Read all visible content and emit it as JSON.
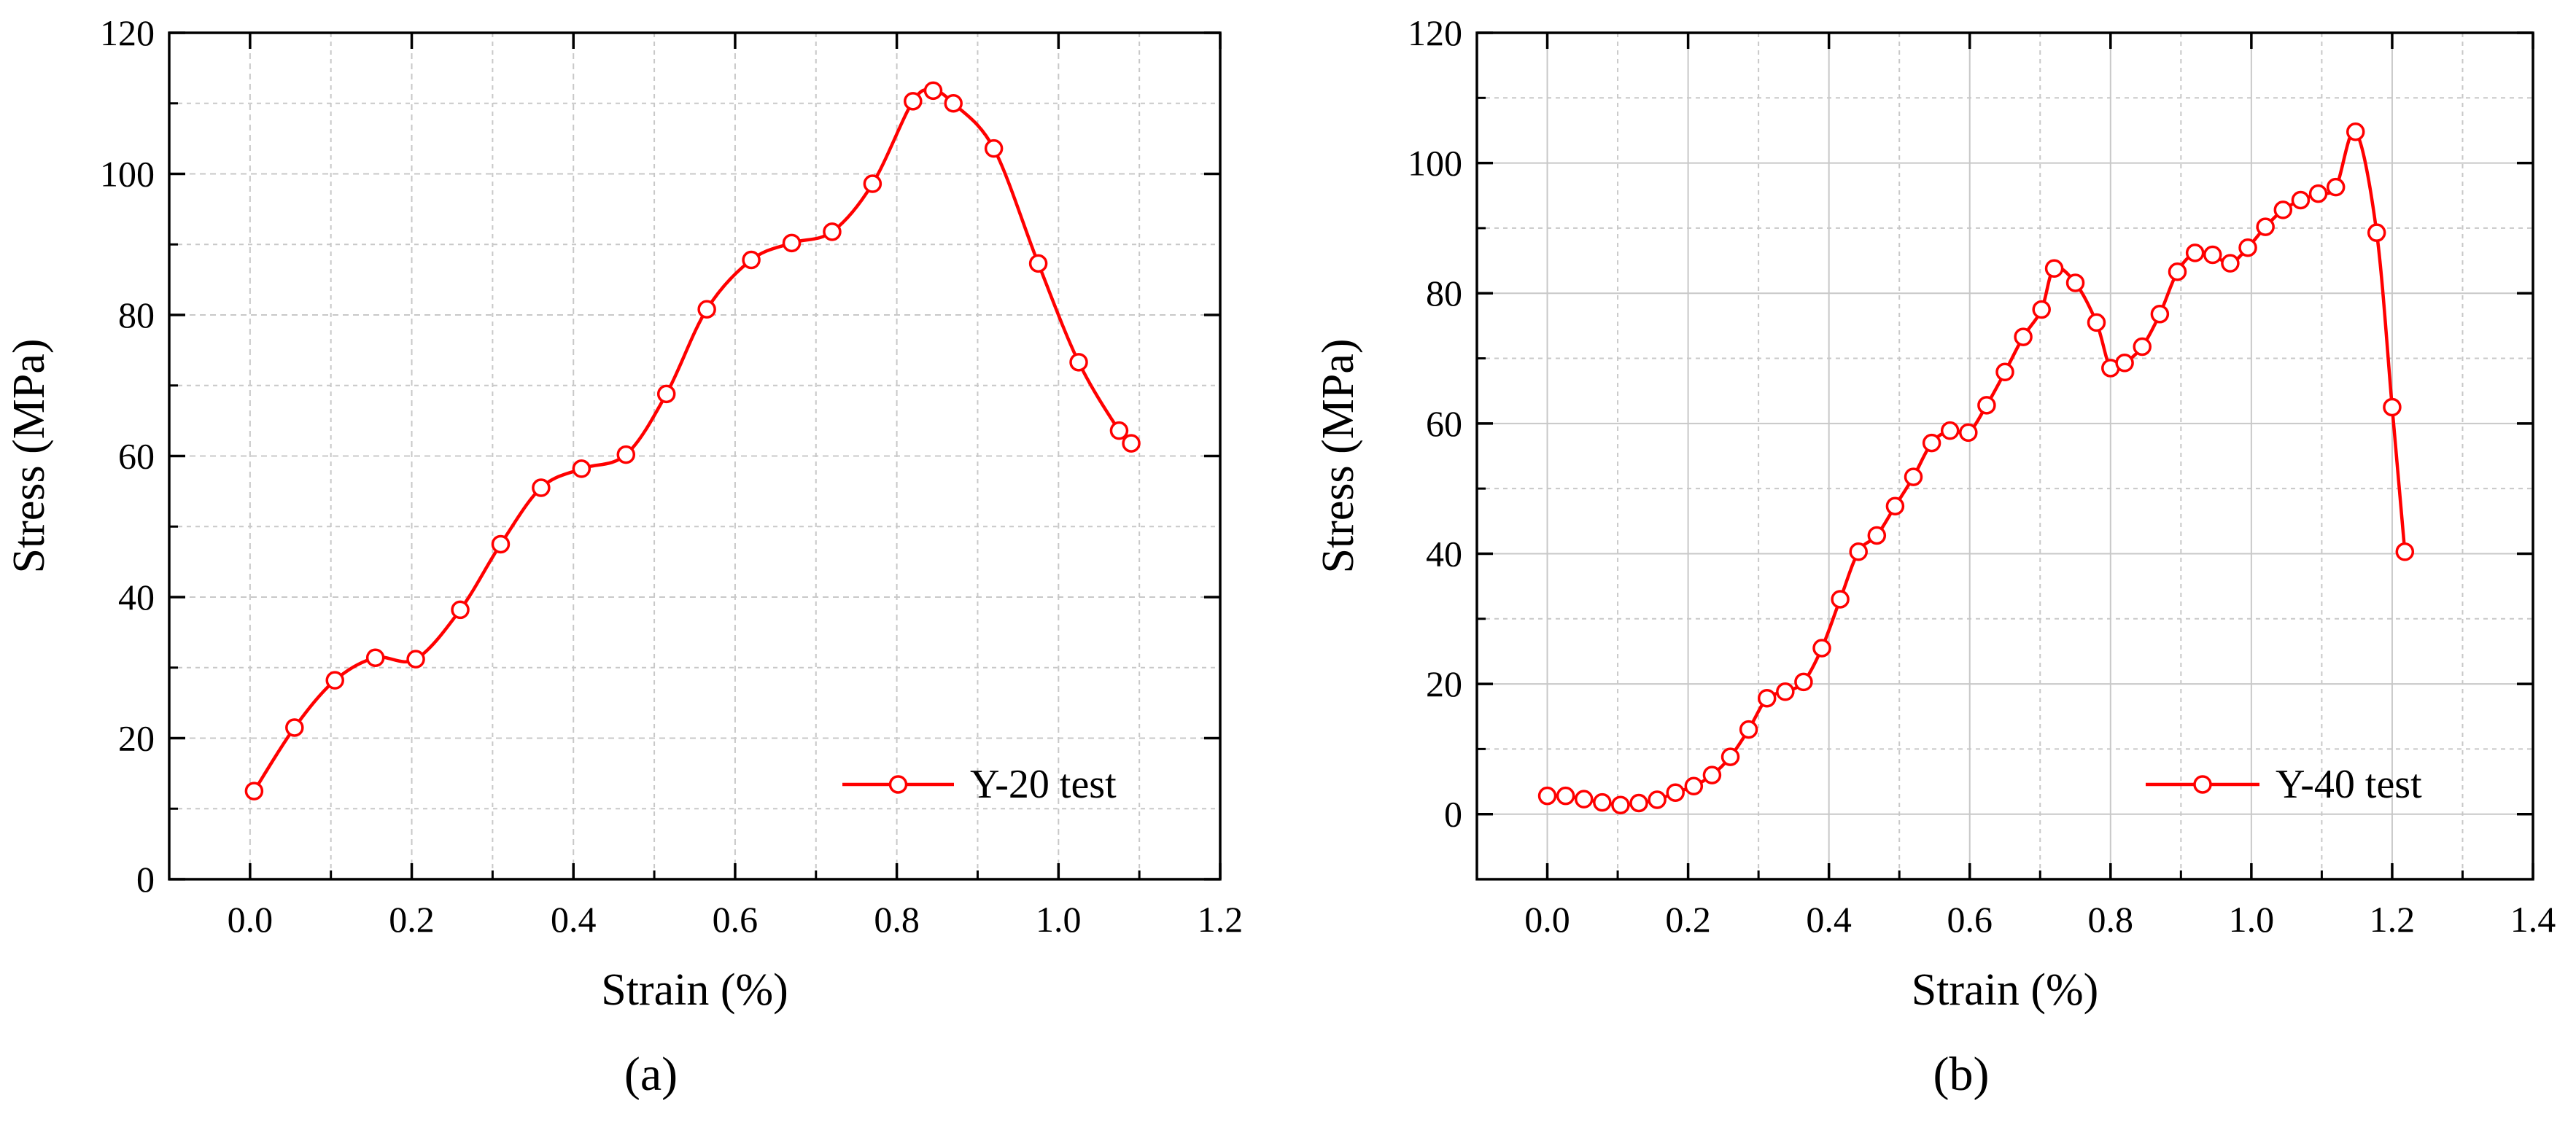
{
  "chart_data": [
    {
      "type": "line",
      "panel_label": "(a)",
      "xlabel": "Strain (%)",
      "ylabel": "Stress (MPa)",
      "xlim": [
        -0.1,
        1.2
      ],
      "ylim": [
        0,
        120
      ],
      "xticks": [
        "0.0",
        "0.2",
        "0.4",
        "0.6",
        "0.8",
        "1.0",
        "1.2"
      ],
      "yticks": [
        "0",
        "20",
        "40",
        "60",
        "80",
        "100",
        "120"
      ],
      "grid": true,
      "legend_position": "bottom-right",
      "colors": {
        "series": "#ff0000",
        "grid": "#c8c8c8",
        "axis": "#000000"
      },
      "series": [
        {
          "name": "Y-20 test",
          "x": [
            0.005,
            0.055,
            0.105,
            0.155,
            0.205,
            0.26,
            0.31,
            0.36,
            0.41,
            0.465,
            0.515,
            0.565,
            0.62,
            0.67,
            0.72,
            0.77,
            0.82,
            0.845,
            0.87,
            0.92,
            0.975,
            1.025,
            1.075,
            1.09
          ],
          "y": [
            12.5,
            21.5,
            28.2,
            31.4,
            31.2,
            38.2,
            47.5,
            55.5,
            58.2,
            60.2,
            68.8,
            80.8,
            87.8,
            90.2,
            91.8,
            98.6,
            110.3,
            111.8,
            110.0,
            103.6,
            87.3,
            73.3,
            63.6,
            61.8
          ]
        }
      ]
    },
    {
      "type": "line",
      "panel_label": "(b)",
      "xlabel": "Strain (%)",
      "ylabel": "Stress (MPa)",
      "xlim": [
        -0.1,
        1.4
      ],
      "ylim": [
        -10,
        120
      ],
      "xticks": [
        "0.0",
        "0.2",
        "0.4",
        "0.6",
        "0.8",
        "1.0",
        "1.2",
        "1.4"
      ],
      "yticks": [
        "0",
        "20",
        "40",
        "60",
        "80",
        "100",
        "120"
      ],
      "grid": true,
      "legend_position": "bottom-right",
      "colors": {
        "series": "#ff0000",
        "grid": "#c8c8c8",
        "axis": "#000000"
      },
      "series": [
        {
          "name": "Y-40 test",
          "x": [
            0.0,
            0.026,
            0.052,
            0.078,
            0.104,
            0.13,
            0.156,
            0.182,
            0.208,
            0.234,
            0.26,
            0.286,
            0.312,
            0.338,
            0.364,
            0.39,
            0.416,
            0.442,
            0.468,
            0.494,
            0.52,
            0.546,
            0.572,
            0.598,
            0.624,
            0.65,
            0.676,
            0.702,
            0.72,
            0.75,
            0.78,
            0.8,
            0.82,
            0.845,
            0.87,
            0.895,
            0.92,
            0.945,
            0.97,
            0.995,
            1.02,
            1.045,
            1.07,
            1.095,
            1.12,
            1.148,
            1.178,
            1.2,
            1.218
          ],
          "y": [
            2.8,
            2.8,
            2.3,
            1.8,
            1.4,
            1.7,
            2.2,
            3.3,
            4.3,
            6.0,
            8.8,
            13.0,
            17.8,
            18.8,
            20.3,
            25.5,
            33.0,
            40.3,
            42.8,
            47.3,
            51.8,
            57.0,
            58.9,
            58.6,
            62.8,
            67.9,
            73.3,
            77.5,
            83.8,
            81.6,
            75.5,
            68.5,
            69.3,
            71.8,
            76.8,
            83.3,
            86.2,
            85.9,
            84.6,
            87.0,
            90.2,
            92.8,
            94.3,
            95.3,
            96.3,
            104.8,
            89.3,
            62.5,
            40.3
          ]
        }
      ]
    }
  ]
}
